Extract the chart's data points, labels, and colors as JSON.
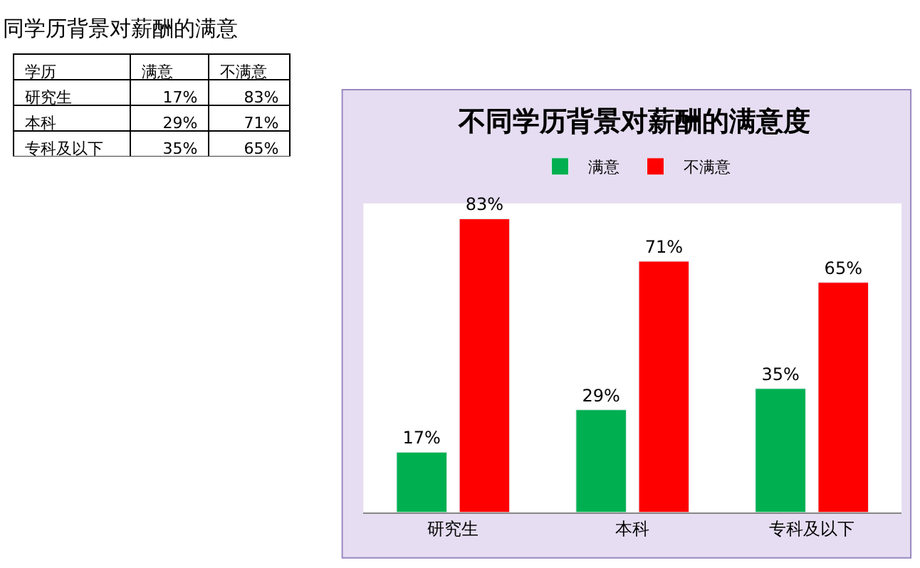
{
  "chart_data": {
    "type": "bar",
    "title": "不同学历背景对薪酬的满意度",
    "annotations": [
      "同学历背景对薪酬的满意",
      "学历"
    ],
    "categories": [
      "研究生",
      "本科",
      "专科及以下"
    ],
    "series": [
      {
        "name": "满意",
        "color": "#00b050",
        "values": [
          17,
          29,
          35
        ],
        "value_labels": [
          "17%",
          "29%",
          "35%"
        ]
      },
      {
        "name": "不满意",
        "color": "#ff0000",
        "values": [
          83,
          71,
          65
        ],
        "value_labels": [
          "83%",
          "71%",
          "65%"
        ]
      }
    ],
    "legend": "top",
    "grid": false
  }
}
